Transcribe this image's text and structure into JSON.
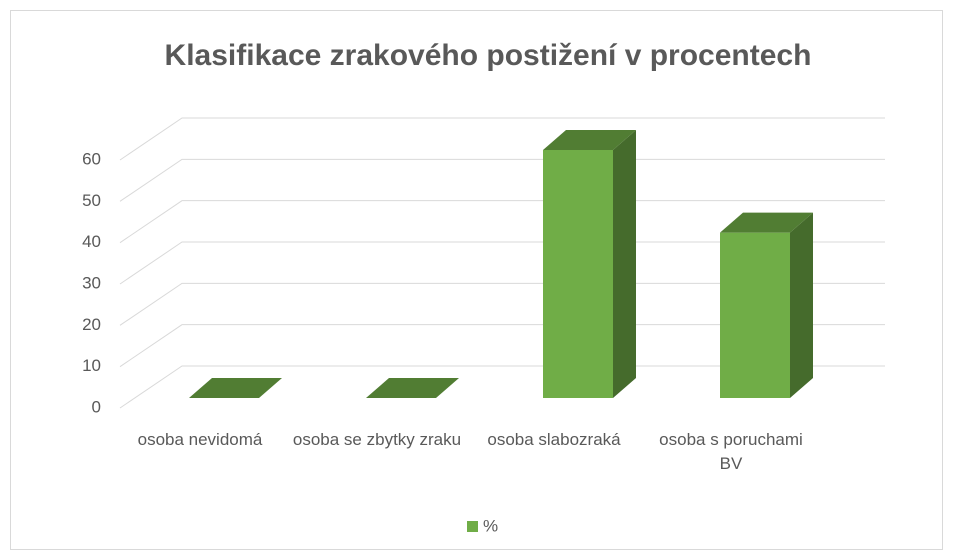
{
  "chart_data": {
    "type": "bar3d",
    "title": "Klasifikace zrakového postižení v procentech",
    "categories": [
      "osoba nevidomá",
      "osoba se zbytky zraku",
      "osoba slabozraká",
      "osoba s poruchami BV"
    ],
    "series": [
      {
        "name": "%",
        "color": "#70ad47",
        "values": [
          0,
          0,
          60,
          40
        ]
      }
    ],
    "ylim": [
      0,
      60
    ],
    "yticks": [
      0,
      10,
      20,
      30,
      40,
      50,
      60
    ],
    "grid": true,
    "legend": "bottom"
  }
}
